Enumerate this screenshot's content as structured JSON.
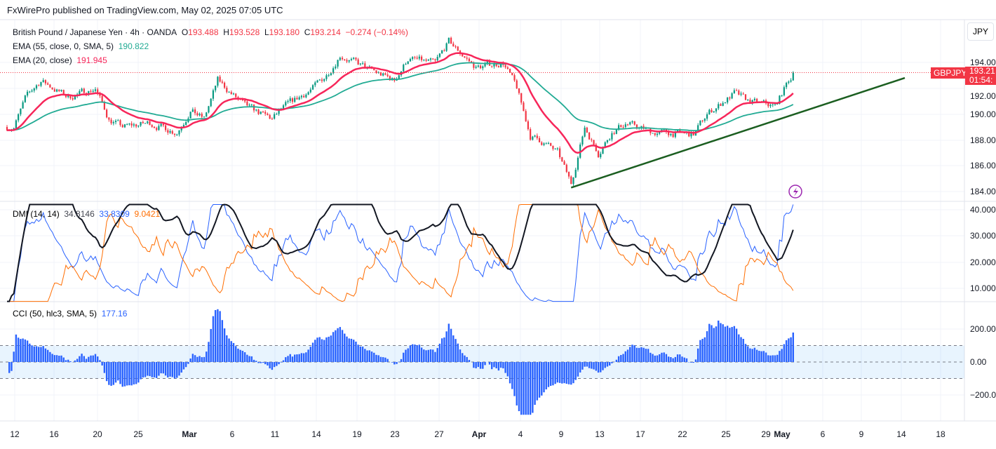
{
  "publisher": "FxWirePro published on TradingView.com, May 02, 2025 07:05 UTC",
  "symbol": {
    "name": "British Pound / Japanese Yen · 4h · OANDA",
    "open_label": "O",
    "open": "193.488",
    "high_label": "H",
    "high": "193.528",
    "low_label": "L",
    "low": "193.180",
    "close_label": "C",
    "close": "193.214",
    "change": "−0.274 (−0.14%)"
  },
  "indicators": {
    "ema55": {
      "label": "EMA (55, close, 0, SMA, 5)",
      "value": "190.822",
      "color": "#22ab94"
    },
    "ema20": {
      "label": "EMA (20, close)",
      "value": "191.945",
      "color": "#f7265a"
    },
    "dmi": {
      "label": "DMI (14, 14)",
      "adx": "34.8146",
      "plus_di": "33.8309",
      "minus_di": "9.0421",
      "colors": {
        "adx": "#131722",
        "plus": "#2962ff",
        "minus": "#ff6d00"
      }
    },
    "cci": {
      "label": "CCI (50, hlc3, SMA, 5)",
      "value": "177.16",
      "color": "#2962ff"
    }
  },
  "currency_button": "JPY",
  "price_tag": {
    "ticker": "GBPJPY",
    "price": "193.21",
    "countdown": "01:54:",
    "color": "#f23645"
  },
  "chart_data": [
    {
      "type": "candlestick",
      "title": "GBPJPY 4h",
      "waypoints": [
        [
          "2025-02-11",
          189.0
        ],
        [
          "2025-02-12",
          191.5
        ],
        [
          "2025-02-13",
          192.6
        ],
        [
          "2025-02-17",
          191.3
        ],
        [
          "2025-02-19",
          192.0
        ],
        [
          "2025-02-20",
          189.6
        ],
        [
          "2025-02-21",
          189.0
        ],
        [
          "2025-02-25",
          189.3
        ],
        [
          "2025-02-27",
          188.6
        ],
        [
          "2025-02-28",
          190.3
        ],
        [
          "2025-03-03",
          189.6
        ],
        [
          "2025-03-04",
          192.6
        ],
        [
          "2025-03-06",
          190.6
        ],
        [
          "2025-03-10",
          189.6
        ],
        [
          "2025-03-11",
          190.6
        ],
        [
          "2025-03-13",
          192.0
        ],
        [
          "2025-03-14",
          193.0
        ],
        [
          "2025-03-17",
          194.6
        ],
        [
          "2025-03-19",
          193.5
        ],
        [
          "2025-03-21",
          192.6
        ],
        [
          "2025-03-24",
          194.3
        ],
        [
          "2025-03-26",
          193.9
        ],
        [
          "2025-03-27",
          195.6
        ],
        [
          "2025-03-28",
          194.6
        ],
        [
          "2025-03-31",
          193.6
        ],
        [
          "2025-04-02",
          194.0
        ],
        [
          "2025-04-03",
          192.0
        ],
        [
          "2025-04-04",
          188.3
        ],
        [
          "2025-04-07",
          187.8
        ],
        [
          "2025-04-08",
          187.0
        ],
        [
          "2025-04-09",
          184.6
        ],
        [
          "2025-04-10",
          189.0
        ],
        [
          "2025-04-11",
          187.0
        ],
        [
          "2025-04-14",
          188.6
        ],
        [
          "2025-04-15",
          189.3
        ],
        [
          "2025-04-17",
          188.6
        ],
        [
          "2025-04-22",
          188.4
        ],
        [
          "2025-04-23",
          190.0
        ],
        [
          "2025-04-25",
          191.6
        ],
        [
          "2025-04-28",
          191.0
        ],
        [
          "2025-04-30",
          190.6
        ],
        [
          "2025-05-01",
          192.6
        ],
        [
          "2025-05-02",
          193.21
        ]
      ],
      "trendline": {
        "start": [
          "2025-04-09",
          184.3
        ],
        "end": [
          "2025-05-14",
          192.8
        ],
        "color": "#1b5e20"
      },
      "y_ticks": [
        "194.00",
        "192.00",
        "190.00",
        "188.00",
        "186.00",
        "184.00"
      ],
      "ylim": [
        183.5,
        196.5
      ]
    },
    {
      "type": "line",
      "title": "DMI (14, 14)",
      "y_ticks": [
        "40.000",
        "30.000",
        "20.000",
        "10.000"
      ]
    },
    {
      "type": "bar",
      "title": "CCI (50, hlc3, SMA, 5)",
      "y_ticks": [
        "200.00",
        "0.00",
        "−200.00"
      ],
      "bands": [
        100,
        -100
      ]
    }
  ],
  "x_ticks": [
    "12",
    "16",
    "20",
    "25",
    "Mar",
    "6",
    "11",
    "14",
    "19",
    "23",
    "27",
    "Apr",
    "4",
    "9",
    "13",
    "17",
    "22",
    "25",
    "29",
    "May",
    "6",
    "9",
    "14",
    "18"
  ]
}
